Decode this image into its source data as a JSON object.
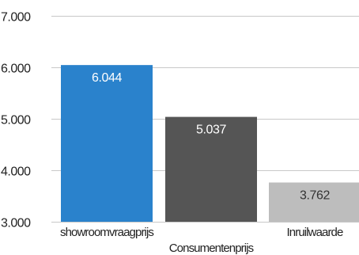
{
  "chart_data": {
    "type": "bar",
    "categories": [
      "show room vraagprijs",
      "Consumentenprijs",
      "Inruilwaarde"
    ],
    "category_display": [
      "showroomvraagprijs",
      "Consumentenprijs",
      "Inruilwaarde"
    ],
    "values": [
      6044,
      5037,
      3762
    ],
    "value_labels": [
      "6.044",
      "5.037",
      "3.762"
    ],
    "bar_colors": [
      "#2a82cc",
      "#555555",
      "#bdbdbd"
    ],
    "label_colors": [
      "#ffffff",
      "#ffffff",
      "#333333"
    ],
    "yticks": [
      3000,
      4000,
      5000,
      6000,
      7000
    ],
    "ytick_labels": [
      "3.000",
      "4.000",
      "5.000",
      "6.000",
      "7.000"
    ],
    "ylim": [
      3000,
      7000
    ],
    "grid": true,
    "legend": "none",
    "title": "",
    "xlabel": "",
    "ylabel": ""
  }
}
